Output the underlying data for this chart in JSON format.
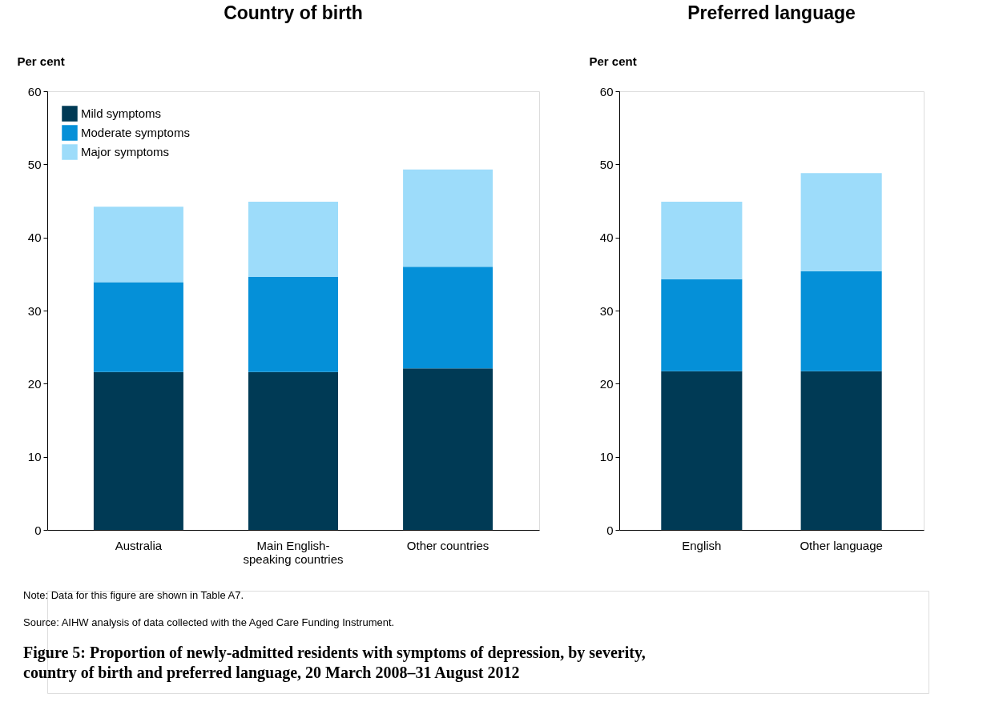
{
  "chart_data": [
    {
      "type": "bar",
      "title": "Country of birth",
      "ylabel": "Per cent",
      "categories": [
        "Australia",
        "Main English-speaking countries",
        "Other countries"
      ],
      "stacked": true,
      "ylim": [
        0,
        60
      ],
      "yticks": [
        0,
        10,
        20,
        30,
        40,
        50,
        60
      ],
      "grid": false,
      "legend": "top left",
      "series": [
        {
          "name": "Mild symptoms",
          "color": "#003a55",
          "values": [
            21.6,
            21.6,
            22.1
          ]
        },
        {
          "name": "Moderate symptoms",
          "color": "#0590d8",
          "values": [
            12.3,
            13.0,
            13.9
          ]
        },
        {
          "name": "Major symptoms",
          "color": "#9ddcfa",
          "values": [
            10.3,
            10.3,
            13.3
          ]
        }
      ],
      "annotations": [
        "Note: Data for this figure are shown in Table A7.",
        "Source: AIHW analysis of data collected with the Aged Care Funding Instrument.",
        "Figure 5: Proportion of newly-admitted residents with symptoms of depression, by severity, country of birth and preferred language, 20 March 2008–31 August 2012"
      ]
    },
    {
      "type": "bar",
      "title": "Preferred language",
      "ylabel": "Per cent",
      "categories": [
        "English",
        "Other language"
      ],
      "stacked": true,
      "ylim": [
        0,
        60
      ],
      "yticks": [
        0,
        10,
        20,
        30,
        40,
        50,
        60
      ],
      "grid": false,
      "legend": false,
      "series": [
        {
          "name": "Mild symptoms",
          "color": "#003a55",
          "values": [
            21.7,
            21.7
          ]
        },
        {
          "name": "Moderate symptoms",
          "color": "#0590d8",
          "values": [
            12.6,
            13.7
          ]
        },
        {
          "name": "Major symptoms",
          "color": "#9ddcfa",
          "values": [
            10.6,
            13.4
          ]
        }
      ]
    }
  ]
}
